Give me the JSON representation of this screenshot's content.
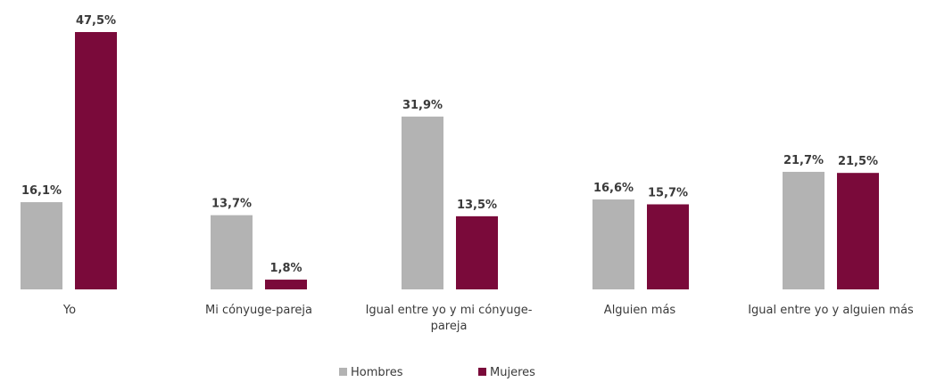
{
  "chart_data": {
    "type": "bar",
    "categories": [
      [
        "Yo"
      ],
      [
        "Mi cónyuge-pareja"
      ],
      [
        "Igual entre yo y mi cónyuge-",
        "pareja"
      ],
      [
        "Alguien más"
      ],
      [
        "Igual entre yo y alguien más"
      ]
    ],
    "series": [
      {
        "name": "Hombres",
        "color": "#b3b3b3",
        "values": [
          16.1,
          13.7,
          31.9,
          16.6,
          21.7
        ],
        "labels": [
          "16,1%",
          "13,7%",
          "31,9%",
          "16,6%",
          "21,7%"
        ]
      },
      {
        "name": "Mujeres",
        "color": "#7a0a3a",
        "values": [
          47.5,
          1.8,
          13.5,
          15.7,
          21.5
        ],
        "labels": [
          "47,5%",
          "1,8%",
          "13,5%",
          "15,7%",
          "21,5%"
        ]
      }
    ],
    "ylim": [
      0,
      47.5
    ],
    "grid": false,
    "legend_position": "bottom"
  }
}
